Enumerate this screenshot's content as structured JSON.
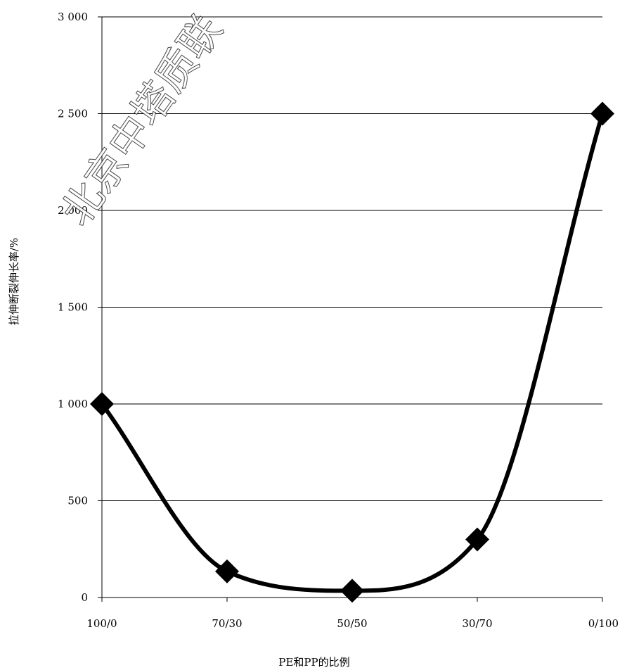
{
  "chart_data": {
    "type": "line",
    "categories": [
      "100/0",
      "70/30",
      "50/50",
      "30/70",
      "0/100"
    ],
    "values": [
      1000,
      135,
      35,
      300,
      2500
    ],
    "xlabel": "PE和PP的比例",
    "ylabel": "拉伸断裂伸长率/%",
    "ylim": [
      0,
      3000
    ],
    "yticks": [
      0,
      500,
      1000,
      1500,
      2000,
      2500,
      3000
    ],
    "ytick_labels": [
      "0",
      "500",
      "1 000",
      "1 500",
      "2 000",
      "2 500",
      "3 000"
    ],
    "grid": "horizontal",
    "marker": "diamond",
    "line": "smoothed",
    "line_color": "#000000",
    "marker_color": "#000000"
  },
  "watermark": "北京中塔质联"
}
